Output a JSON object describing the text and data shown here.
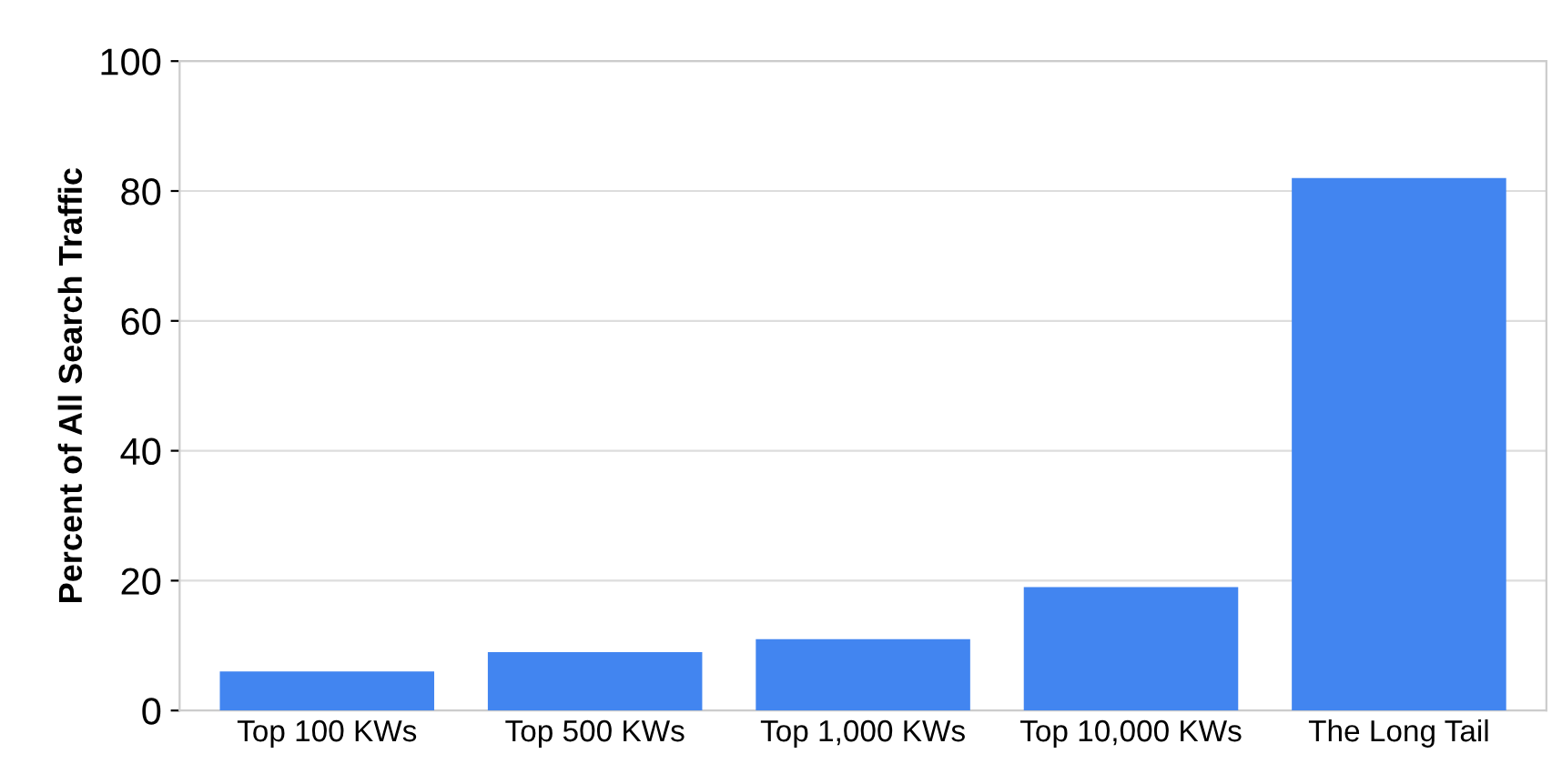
{
  "chart_data": {
    "type": "bar",
    "ylabel": "Percent of All Search Traffic",
    "categories": [
      "Top 100 KWs",
      "Top 500 KWs",
      "Top 1,000 KWs",
      "Top 10,000 KWs",
      "The Long Tail"
    ],
    "values": [
      6,
      9,
      11,
      19,
      82
    ],
    "color": "#4285f0",
    "ylim": [
      0,
      100
    ],
    "yticks": [
      0,
      20,
      40,
      60,
      80,
      100
    ],
    "grid": "y"
  }
}
